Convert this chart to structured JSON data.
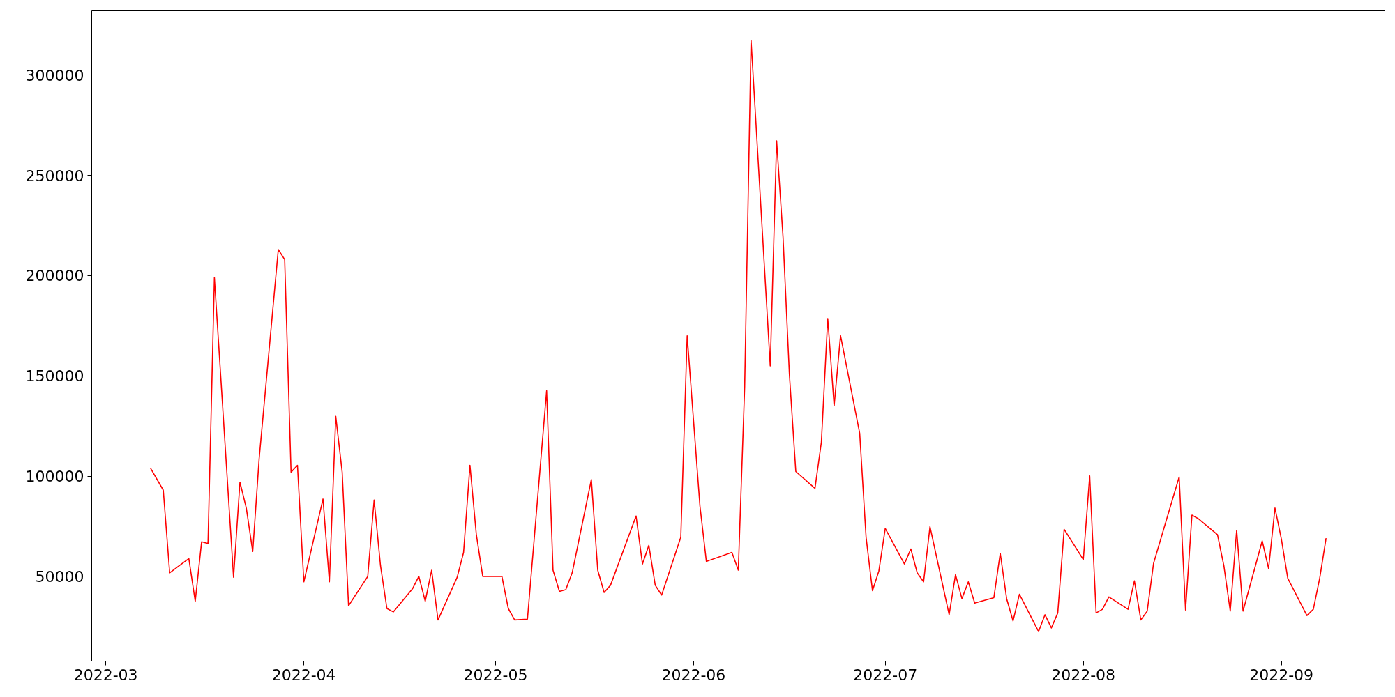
{
  "chart_data": {
    "type": "line",
    "grid": false,
    "line_style": "solid",
    "marker": "none",
    "xlim": [
      "2022-02-26T19:12",
      "2022-09-17T04:48"
    ],
    "ylim": [
      7760,
      332040
    ],
    "xticks": [
      {
        "value": "2022-03-01",
        "label": "2022-03"
      },
      {
        "value": "2022-04-01",
        "label": "2022-04"
      },
      {
        "value": "2022-05-01",
        "label": "2022-05"
      },
      {
        "value": "2022-06-01",
        "label": "2022-06"
      },
      {
        "value": "2022-07-01",
        "label": "2022-07"
      },
      {
        "value": "2022-08-01",
        "label": "2022-08"
      },
      {
        "value": "2022-09-01",
        "label": "2022-09"
      }
    ],
    "yticks": [
      50000,
      100000,
      150000,
      200000,
      250000,
      300000
    ],
    "x": [
      "2022-03-08",
      "2022-03-10",
      "2022-03-11",
      "2022-03-14",
      "2022-03-15",
      "2022-03-16",
      "2022-03-17",
      "2022-03-18",
      "2022-03-21",
      "2022-03-22",
      "2022-03-23",
      "2022-03-24",
      "2022-03-25",
      "2022-03-28",
      "2022-03-29",
      "2022-03-30",
      "2022-03-31",
      "2022-04-01",
      "2022-04-04",
      "2022-04-05",
      "2022-04-06",
      "2022-04-07",
      "2022-04-08",
      "2022-04-11",
      "2022-04-12",
      "2022-04-13",
      "2022-04-14",
      "2022-04-15",
      "2022-04-18",
      "2022-04-19",
      "2022-04-20",
      "2022-04-21",
      "2022-04-22",
      "2022-04-25",
      "2022-04-26",
      "2022-04-27",
      "2022-04-28",
      "2022-04-29",
      "2022-05-02",
      "2022-05-03",
      "2022-05-04",
      "2022-05-06",
      "2022-05-09",
      "2022-05-10",
      "2022-05-11",
      "2022-05-12",
      "2022-05-13",
      "2022-05-16",
      "2022-05-17",
      "2022-05-18",
      "2022-05-19",
      "2022-05-23",
      "2022-05-24",
      "2022-05-25",
      "2022-05-26",
      "2022-05-27",
      "2022-05-30",
      "2022-05-31",
      "2022-06-02",
      "2022-06-03",
      "2022-06-07",
      "2022-06-08",
      "2022-06-09",
      "2022-06-10",
      "2022-06-13",
      "2022-06-14",
      "2022-06-15",
      "2022-06-16",
      "2022-06-17",
      "2022-06-20",
      "2022-06-21",
      "2022-06-22",
      "2022-06-23",
      "2022-06-24",
      "2022-06-27",
      "2022-06-28",
      "2022-06-29",
      "2022-06-30",
      "2022-07-01",
      "2022-07-04",
      "2022-07-05",
      "2022-07-06",
      "2022-07-07",
      "2022-07-08",
      "2022-07-11",
      "2022-07-12",
      "2022-07-13",
      "2022-07-14",
      "2022-07-15",
      "2022-07-18",
      "2022-07-19",
      "2022-07-20",
      "2022-07-21",
      "2022-07-22",
      "2022-07-25",
      "2022-07-26",
      "2022-07-27",
      "2022-07-28",
      "2022-07-29",
      "2022-08-01",
      "2022-08-02",
      "2022-08-03",
      "2022-08-04",
      "2022-08-05",
      "2022-08-08",
      "2022-08-09",
      "2022-08-10",
      "2022-08-11",
      "2022-08-12",
      "2022-08-16",
      "2022-08-17",
      "2022-08-18",
      "2022-08-19",
      "2022-08-22",
      "2022-08-23",
      "2022-08-24",
      "2022-08-25",
      "2022-08-26",
      "2022-08-29",
      "2022-08-30",
      "2022-08-31",
      "2022-09-01",
      "2022-09-02",
      "2022-09-05",
      "2022-09-06",
      "2022-09-07",
      "2022-09-08"
    ],
    "series": [
      {
        "color": "#ff0000",
        "values": [
          104000,
          93000,
          51800,
          58900,
          37600,
          67300,
          66400,
          199000,
          49600,
          97000,
          84000,
          62400,
          108500,
          213000,
          208000,
          102000,
          105400,
          47300,
          88600,
          47300,
          129800,
          102000,
          35400,
          50000,
          88100,
          55300,
          34000,
          32300,
          43800,
          50000,
          37600,
          53100,
          28300,
          49600,
          62000,
          105400,
          70800,
          50000,
          50000,
          34000,
          28300,
          28700,
          142600,
          53100,
          42500,
          43400,
          51800,
          98300,
          53100,
          42000,
          45600,
          80100,
          56200,
          65500,
          45600,
          40700,
          69500,
          170000,
          85000,
          57500,
          62000,
          53100,
          144900,
          317300,
          155000,
          267200,
          219300,
          150600,
          102300,
          93900,
          116900,
          178600,
          135100,
          170100,
          121400,
          69500,
          42900,
          52700,
          73900,
          56200,
          63700,
          51800,
          47300,
          74800,
          30900,
          50900,
          38900,
          47300,
          36700,
          39400,
          61500,
          38900,
          27800,
          41100,
          22500,
          30900,
          24300,
          31800,
          73500,
          58400,
          100100,
          31800,
          33600,
          39800,
          33600,
          47800,
          28300,
          32700,
          56600,
          99600,
          33200,
          80600,
          78800,
          70800,
          55300,
          32700,
          73000,
          32700,
          67700,
          54000,
          84100,
          68600,
          49100,
          30500,
          33600,
          49100,
          69100
        ]
      }
    ]
  }
}
